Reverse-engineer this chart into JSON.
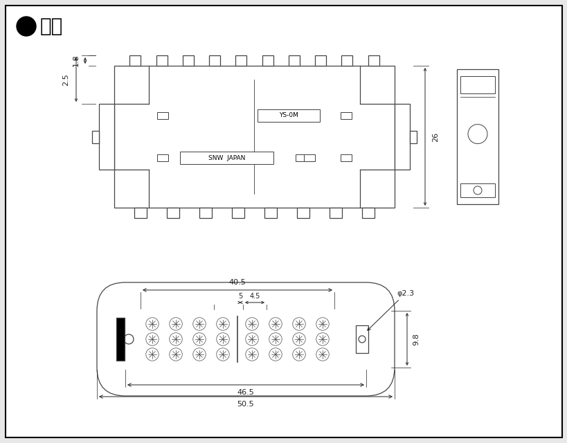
{
  "bg_color": "#e8e8e8",
  "inner_bg": "#ffffff",
  "border_color": "#000000",
  "line_color": "#444444",
  "dim_color": "#222222",
  "title_fontsize": 20,
  "dim_fontsize": 8,
  "annotations": {
    "dim_1_8": "1.8",
    "dim_2_5": "2.5",
    "dim_26": "26",
    "dim_40_5": "40.5",
    "dim_5": "5",
    "dim_4_5": "4.5",
    "dim_phi2_3": "φ2.3",
    "dim_9_8": "9.8",
    "dim_46_5": "46.5",
    "dim_50_5": "50.5",
    "label_snw": "SNW  JAPAN",
    "label_model": "YS-0M"
  }
}
